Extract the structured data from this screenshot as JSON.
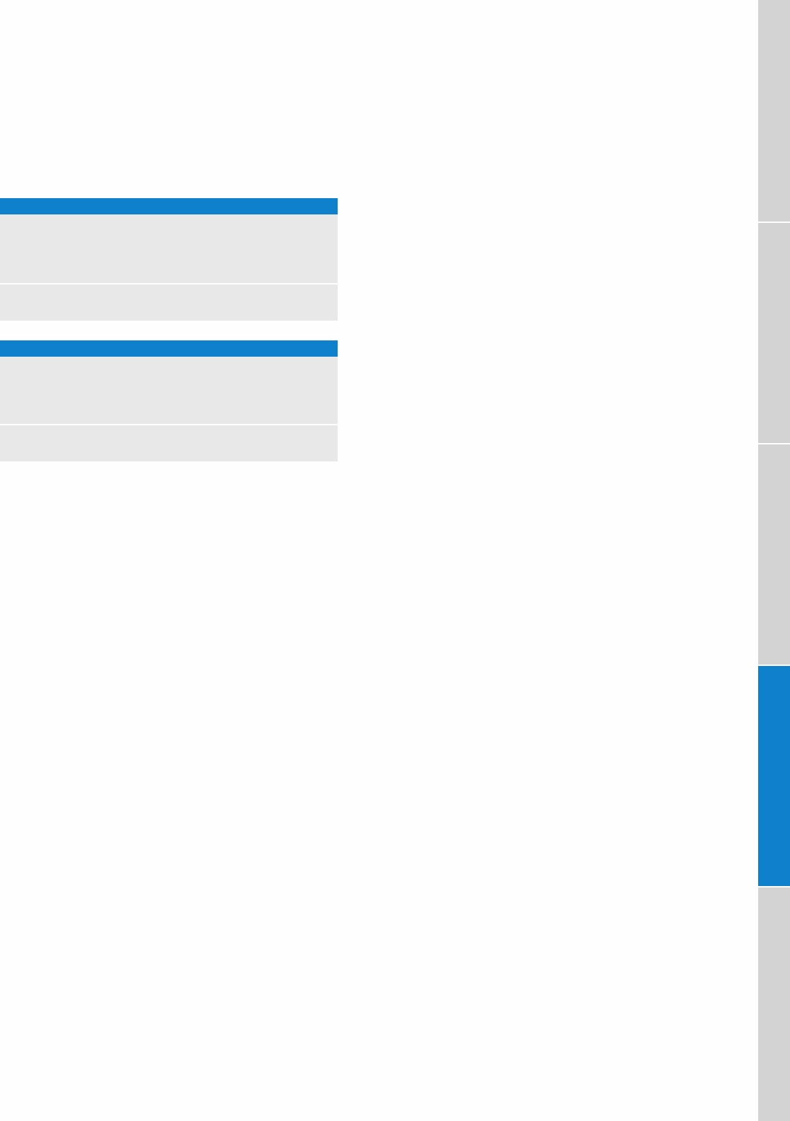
{
  "colors": {
    "accent": "#0f80cc",
    "cell": "#e8e8e8",
    "tab_inactive": "#d3d3d3",
    "background": "#fefefe"
  },
  "tables": [
    {
      "header": "",
      "rows": [
        "",
        ""
      ]
    },
    {
      "header": "",
      "rows": [
        "",
        ""
      ]
    }
  ],
  "side_tabs": {
    "count": 5,
    "active_index": 3
  }
}
